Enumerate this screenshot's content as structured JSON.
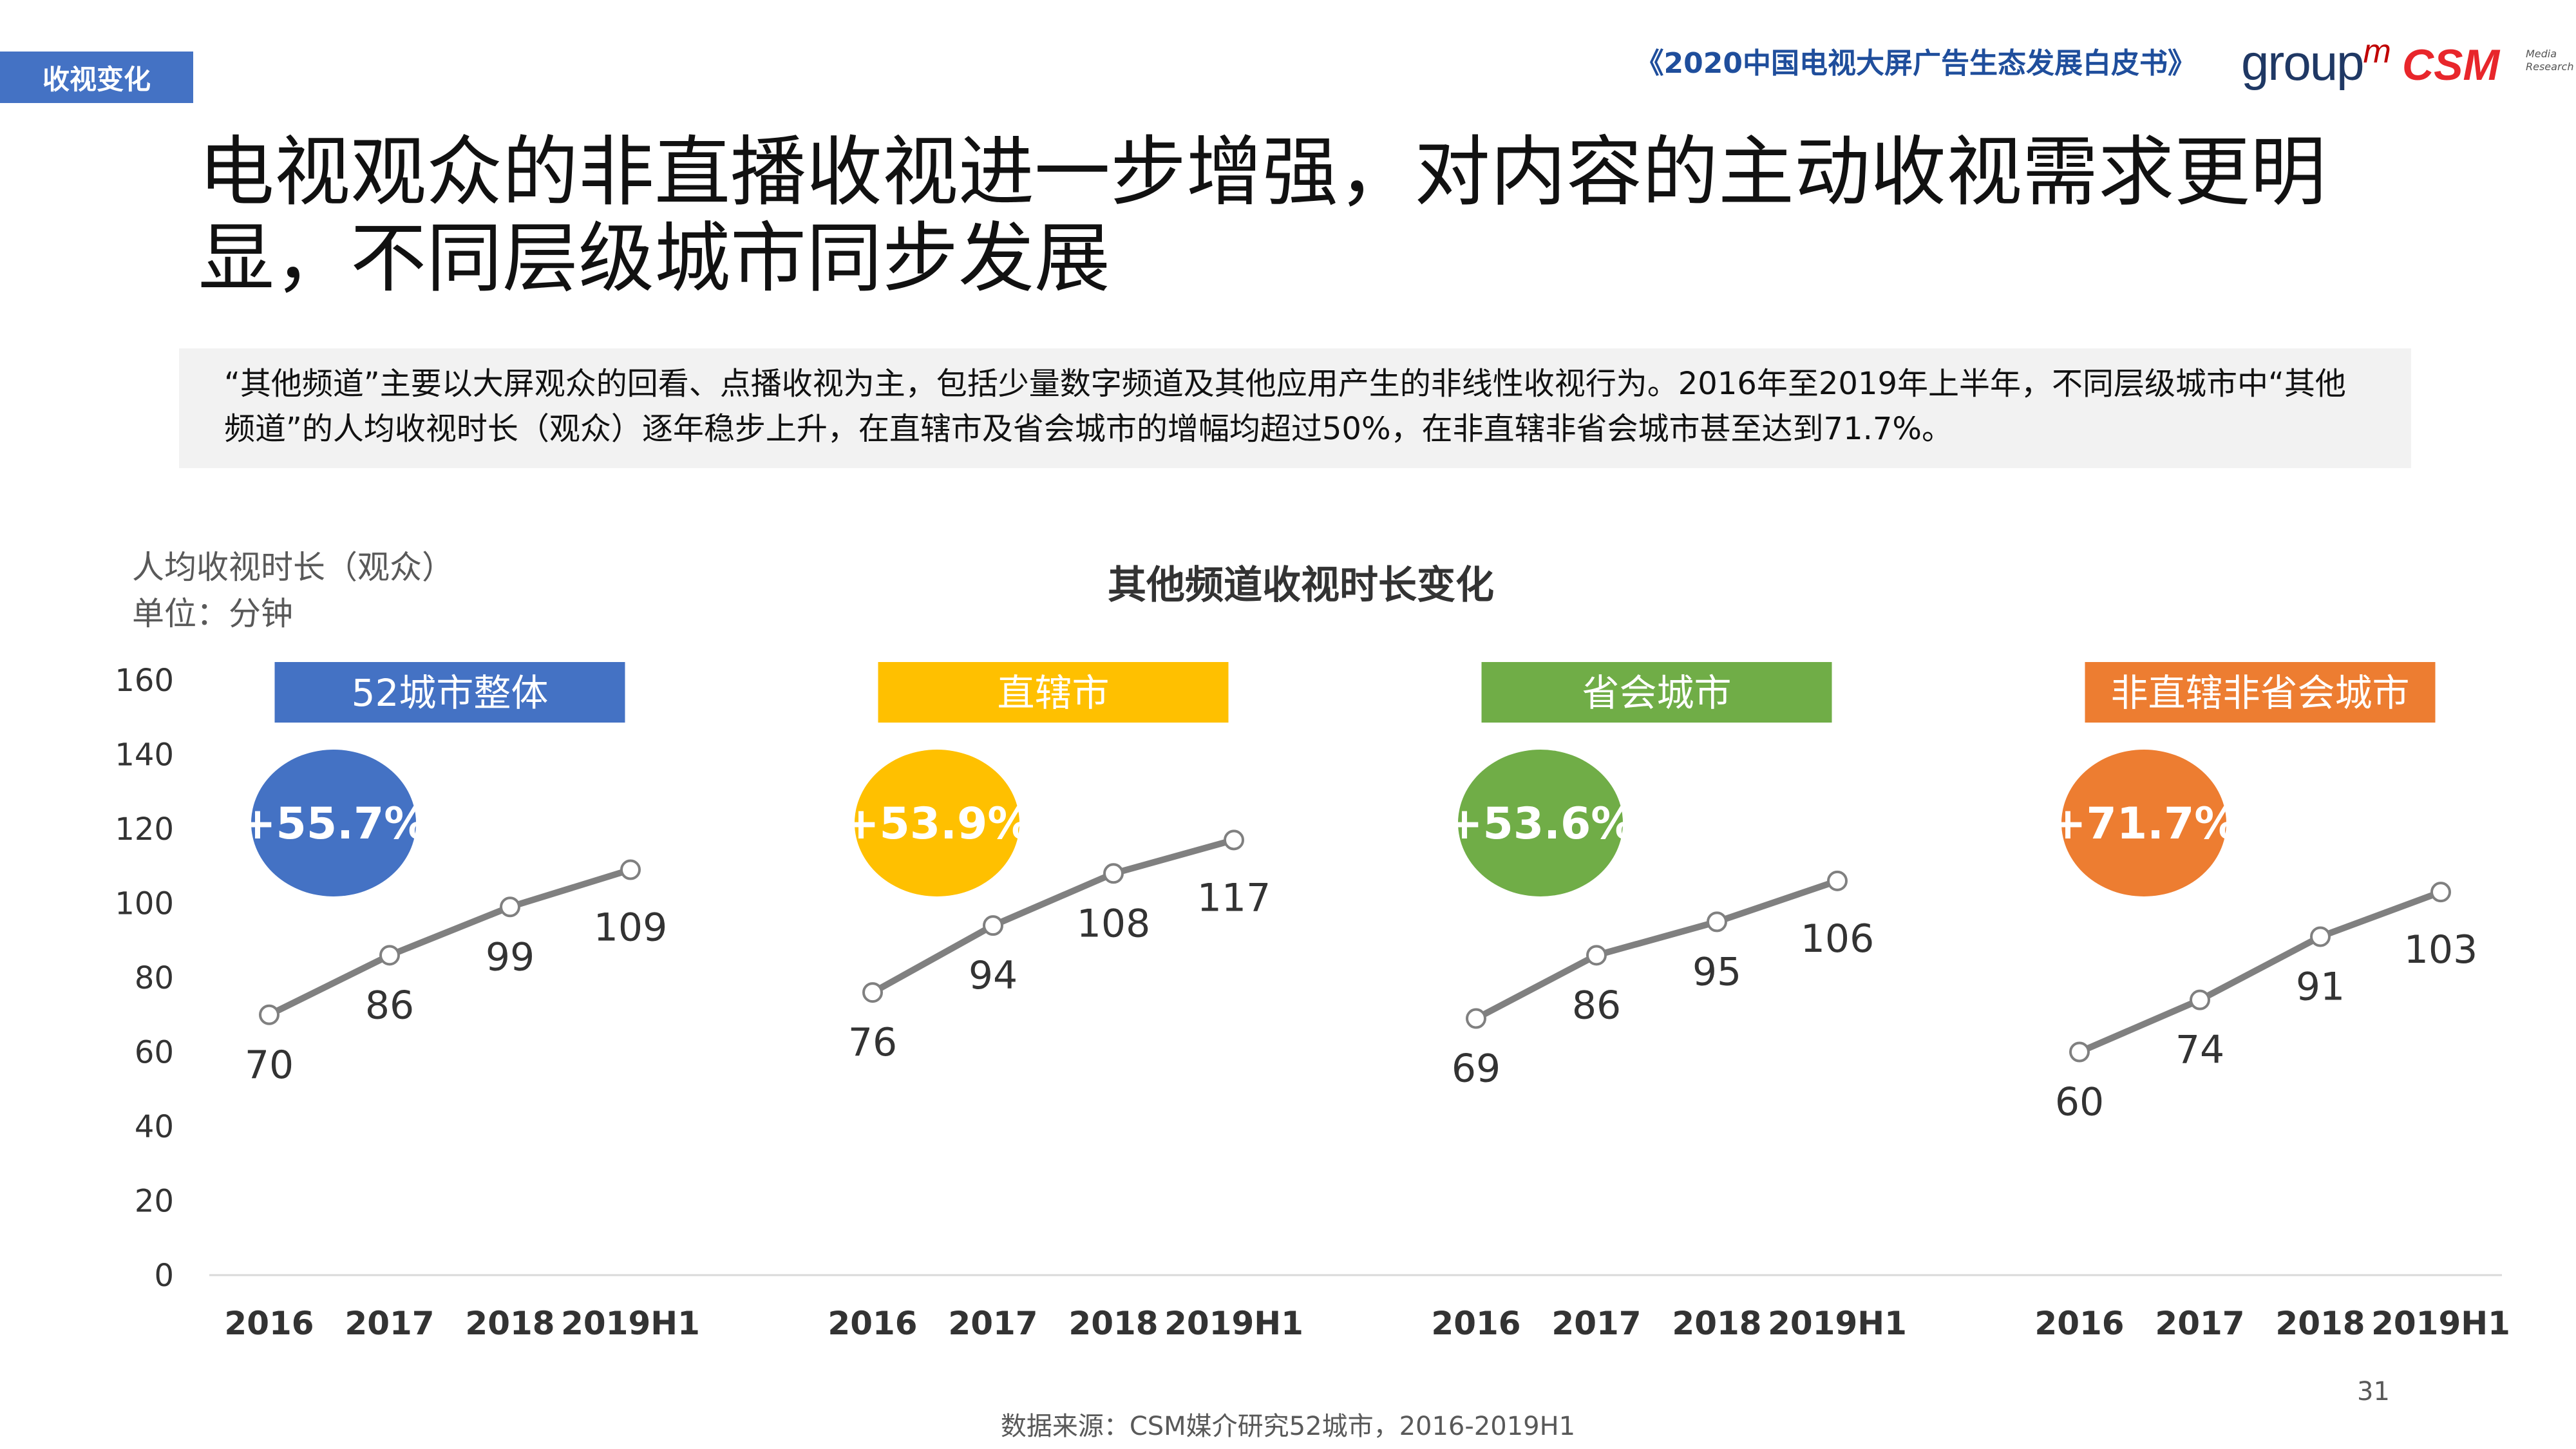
{
  "header": {
    "section_tag": "收视变化",
    "report_title": "《2020中国电视大屏广告生态发展白皮书》",
    "logo_groupm": "group",
    "logo_groupm_m": "m",
    "logo_csm": "CSM",
    "logo_csm_sub_1": "Media",
    "logo_csm_sub_2": "Research"
  },
  "headline": "电视观众的非直播收视进一步增强，对内容的主动收视需求更明显，不同层级城市同步发展",
  "note": "“其他频道”主要以大屏观众的回看、点播收视为主，包括少量数字频道及其他应用产生的非线性收视行为。2016年至2019年上半年，不同层级城市中“其他频道”的人均收视时长（观众）逐年稳步上升，在直辖市及省会城市的增幅均超过50%，在非直辖非省会城市甚至达到71.7%。",
  "unit_label_1": "人均收视时长（观众）",
  "unit_label_2": "单位：分钟",
  "footer_source": "数据来源：CSM媒介研究52城市，2016-2019H1",
  "page_number": "31",
  "chart_data": {
    "type": "line",
    "title": "其他频道收视时长变化",
    "ylabel": "人均收视时长（观众）",
    "yunit": "单位：分钟",
    "ylim": [
      0,
      160
    ],
    "yticks": [
      0,
      20,
      40,
      60,
      80,
      100,
      120,
      140,
      160
    ],
    "line_color": "#808080",
    "groups": [
      {
        "name": "52城市整体",
        "color": "#4472C4",
        "growth": "+55.7%",
        "categories": [
          "2016",
          "2017",
          "2018",
          "2019H1"
        ],
        "values": [
          70,
          86,
          99,
          109
        ]
      },
      {
        "name": "直辖市",
        "color": "#FFC000",
        "growth": "+53.9%",
        "categories": [
          "2016",
          "2017",
          "2018",
          "2019H1"
        ],
        "values": [
          76,
          94,
          108,
          117
        ]
      },
      {
        "name": "省会城市",
        "color": "#70AD47",
        "growth": "+53.6%",
        "categories": [
          "2016",
          "2017",
          "2018",
          "2019H1"
        ],
        "values": [
          69,
          86,
          95,
          106
        ]
      },
      {
        "name": "非直辖非省会城市",
        "color": "#ED7D31",
        "growth": "+71.7%",
        "categories": [
          "2016",
          "2017",
          "2018",
          "2019H1"
        ],
        "values": [
          60,
          74,
          91,
          103
        ]
      }
    ]
  }
}
